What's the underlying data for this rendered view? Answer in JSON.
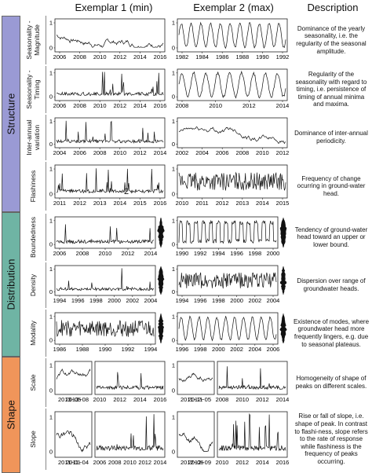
{
  "headers": {
    "col1": "Exemplar 1 (min)",
    "col2": "Exemplar 2 (max)",
    "col3": "Description"
  },
  "groups": [
    {
      "id": "structure",
      "label": "Structure",
      "color": "#9a9ad4"
    },
    {
      "id": "distribution",
      "label": "Distribution",
      "color": "#6fb4a4"
    },
    {
      "id": "shape",
      "label": "Shape",
      "color": "#f0955a"
    }
  ],
  "rows": [
    {
      "id": "seasonality-magnitude",
      "label": "Seasonality -\nMagnitude",
      "desc": "Dominance of the yearly seasonality, i.e. the regularity of the seasonal amplitude.",
      "ex1": {
        "x_ticks": [
          "2006",
          "2008",
          "2010",
          "2012",
          "2014",
          "2016"
        ]
      },
      "ex2": {
        "x_ticks": [
          "1982",
          "1984",
          "1986",
          "1988",
          "1990",
          "1992"
        ]
      }
    },
    {
      "id": "seasonality-timing",
      "label": "Seasonality -\nTiming",
      "desc": "Regularity of the seasonality with regard to timing, i.e. persistence of timing of annual minima and maxima.",
      "ex1": {
        "x_ticks": [
          "2006",
          "2008",
          "2010",
          "2012",
          "2014",
          "2016"
        ]
      },
      "ex2": {
        "x_ticks": [
          "2008",
          "2010",
          "2012",
          "2014"
        ]
      }
    },
    {
      "id": "inter-annual-variation",
      "label": "Inter-annual\nvariation",
      "desc": "Dominance of inter-annual periodicity.",
      "ex1": {
        "x_ticks": [
          "2004",
          "2006",
          "2008",
          "2010",
          "2012",
          "2014"
        ]
      },
      "ex2": {
        "x_ticks": [
          "2002",
          "2004",
          "2006",
          "2008",
          "2010",
          "2012"
        ]
      }
    },
    {
      "id": "flashiness",
      "label": "Flashiness",
      "desc": "Frequency of change ocurring in ground-water head.",
      "ex1": {
        "x_ticks": [
          "2011",
          "2012",
          "2013",
          "2014",
          "2015",
          "2016"
        ],
        "annotation": "2"
      },
      "ex2": {
        "x_ticks": [
          "2010",
          "2011",
          "2012",
          "2013",
          "2014",
          "2015"
        ]
      }
    },
    {
      "id": "boundedness",
      "label": "Boundedness",
      "desc": "Tendency of ground-water head toward an upper or lower bound.",
      "ex1": {
        "x_ticks": [
          "2006",
          "2008",
          "2010",
          "2012",
          "2014"
        ]
      },
      "ex2": {
        "x_ticks": [
          "1990",
          "1992",
          "1994",
          "1996",
          "1998",
          "2000"
        ]
      }
    },
    {
      "id": "density",
      "label": "Density",
      "desc": "Dispersion over range of groundwater heads.",
      "ex1": {
        "x_ticks": [
          "1994",
          "1996",
          "1998",
          "2000",
          "2002",
          "2004"
        ]
      },
      "ex2": {
        "x_ticks": [
          "1994",
          "1996",
          "1998",
          "2000",
          "2002",
          "2004"
        ]
      }
    },
    {
      "id": "modality",
      "label": "Modality",
      "desc": "Existence of modes, where groundwater head more frequently lingers, e.g. due to seasonal plateaus.",
      "ex1": {
        "x_ticks": [
          "1986",
          "1988",
          "1990",
          "1992",
          "1994"
        ]
      },
      "ex2": {
        "x_ticks": [
          "1996",
          "1998",
          "2000",
          "2002",
          "2004",
          "2006"
        ]
      }
    },
    {
      "id": "scale",
      "label": "Scale",
      "desc": "Homogeneity of shape of peaks on different scales.",
      "ex1": {
        "x_ticks": [
          "2013−05",
          "2013−08",
          "2010",
          "2012",
          "2014",
          "2016"
        ]
      },
      "ex2": {
        "x_ticks": [
          "2011−11",
          "2012−05",
          "2008",
          "2010",
          "2012",
          "2014"
        ]
      }
    },
    {
      "id": "slope",
      "label": "Slope",
      "desc": "Rise or fall of slope, i.e. shape of peak. In contrast to flashi-ness, slope refers to the rate of response while flashiness is the frequency of peaks occurring.",
      "ex1": {
        "x_ticks": [
          "2011−01",
          "2011−04",
          "2006",
          "2008",
          "2010",
          "2012",
          "2014"
        ]
      },
      "ex2": {
        "x_ticks": [
          "2012−06",
          "2012−09",
          "2010",
          "2012",
          "2014",
          "2016"
        ]
      }
    }
  ],
  "y_ticks": [
    "0",
    "1"
  ]
}
